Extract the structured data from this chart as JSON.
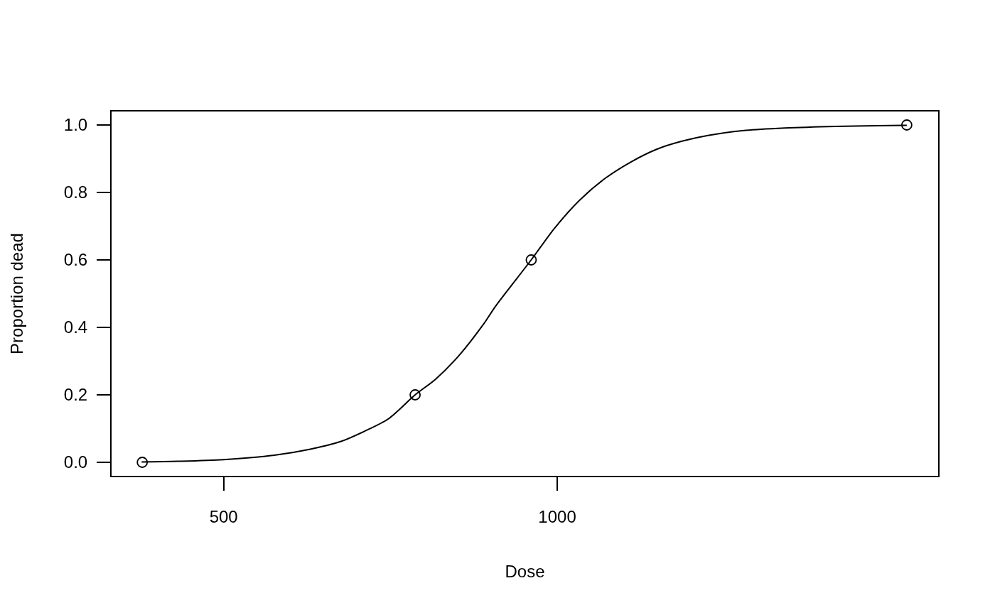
{
  "chart_data": {
    "type": "scatter",
    "xlabel": "Dose",
    "ylabel": "Proportion dead",
    "xlim": [
      332,
      1571
    ],
    "xticks": [
      500,
      1000
    ],
    "ylim": [
      -0.04,
      1.04
    ],
    "yticks": [
      {
        "value": 0,
        "label": "0.0"
      },
      0.2,
      0.4,
      0.6,
      0.8,
      {
        "value": 1,
        "label": "1.0"
      }
    ],
    "series": [
      {
        "marker": "circle",
        "color": "#000000",
        "x": [
          378,
          787,
          961,
          1524
        ],
        "values": [
          0,
          0.2,
          0.6,
          1
        ]
      },
      {
        "type": "line",
        "line_style": "solid",
        "color": "#000000",
        "x": [
          377,
          431,
          500,
          576,
          630,
          676,
          711,
          747,
          787,
          818,
          853,
          889,
          908,
          961,
          996,
          1034,
          1072,
          1111,
          1149,
          1187,
          1226,
          1283,
          1341,
          1417,
          1480,
          1524
        ],
        "values": [
          0.001,
          0.003,
          0.008,
          0.021,
          0.039,
          0.062,
          0.092,
          0.129,
          0.2,
          0.247,
          0.317,
          0.408,
          0.464,
          0.6,
          0.694,
          0.778,
          0.842,
          0.891,
          0.928,
          0.952,
          0.969,
          0.984,
          0.991,
          0.996,
          0.998,
          0.999
        ]
      }
    ]
  }
}
